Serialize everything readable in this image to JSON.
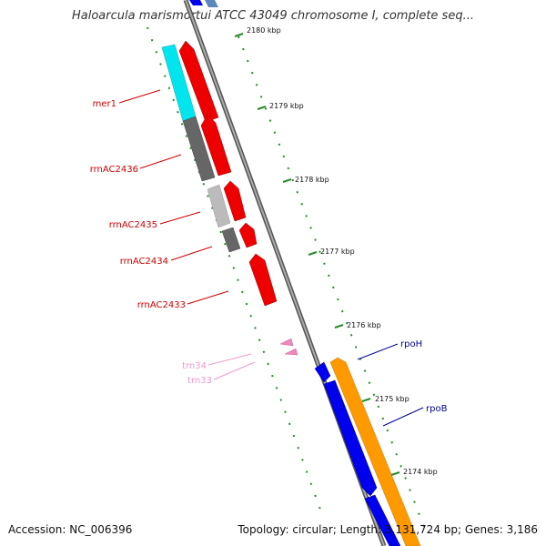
{
  "title": "Haloarcula marismortui ATCC 43049 chromosome I, complete seq...",
  "accession": "Accession: NC_006396",
  "summary": "Topology: circular; Length: 3,131,724 bp; Genes: 3,186",
  "ruler": {
    "unit": "kbp",
    "ticks": [
      "2180 kbp",
      "2179 kbp",
      "2178 kbp",
      "2177 kbp",
      "2176 kbp",
      "2175 kbp",
      "2174 kbp"
    ]
  },
  "genes": [
    {
      "name": "mer1",
      "color": "#cc0000"
    },
    {
      "name": "rrnAC2436",
      "color": "#cc0000"
    },
    {
      "name": "rrnAC2435",
      "color": "#cc0000"
    },
    {
      "name": "rrnAC2434",
      "color": "#cc0000"
    },
    {
      "name": "rrnAC2433",
      "color": "#cc0000"
    },
    {
      "name": "trn34",
      "color": "#ee99cc"
    },
    {
      "name": "trn33",
      "color": "#ee99cc"
    },
    {
      "name": "rpoH",
      "color": "#000099"
    },
    {
      "name": "rpoB",
      "color": "#000099"
    }
  ],
  "colors": {
    "backbone": "#888888",
    "forward_gene": "#ee0000",
    "cds_cyan": "#00e5ee",
    "cds_dark_gray": "#666666",
    "cds_light_gray": "#bbbbbb",
    "reverse_gene_blue": "#0000ee",
    "reverse_gene_orange": "#ff9900",
    "trna": "#ee88bb",
    "tick_green": "#2a8a2a"
  }
}
